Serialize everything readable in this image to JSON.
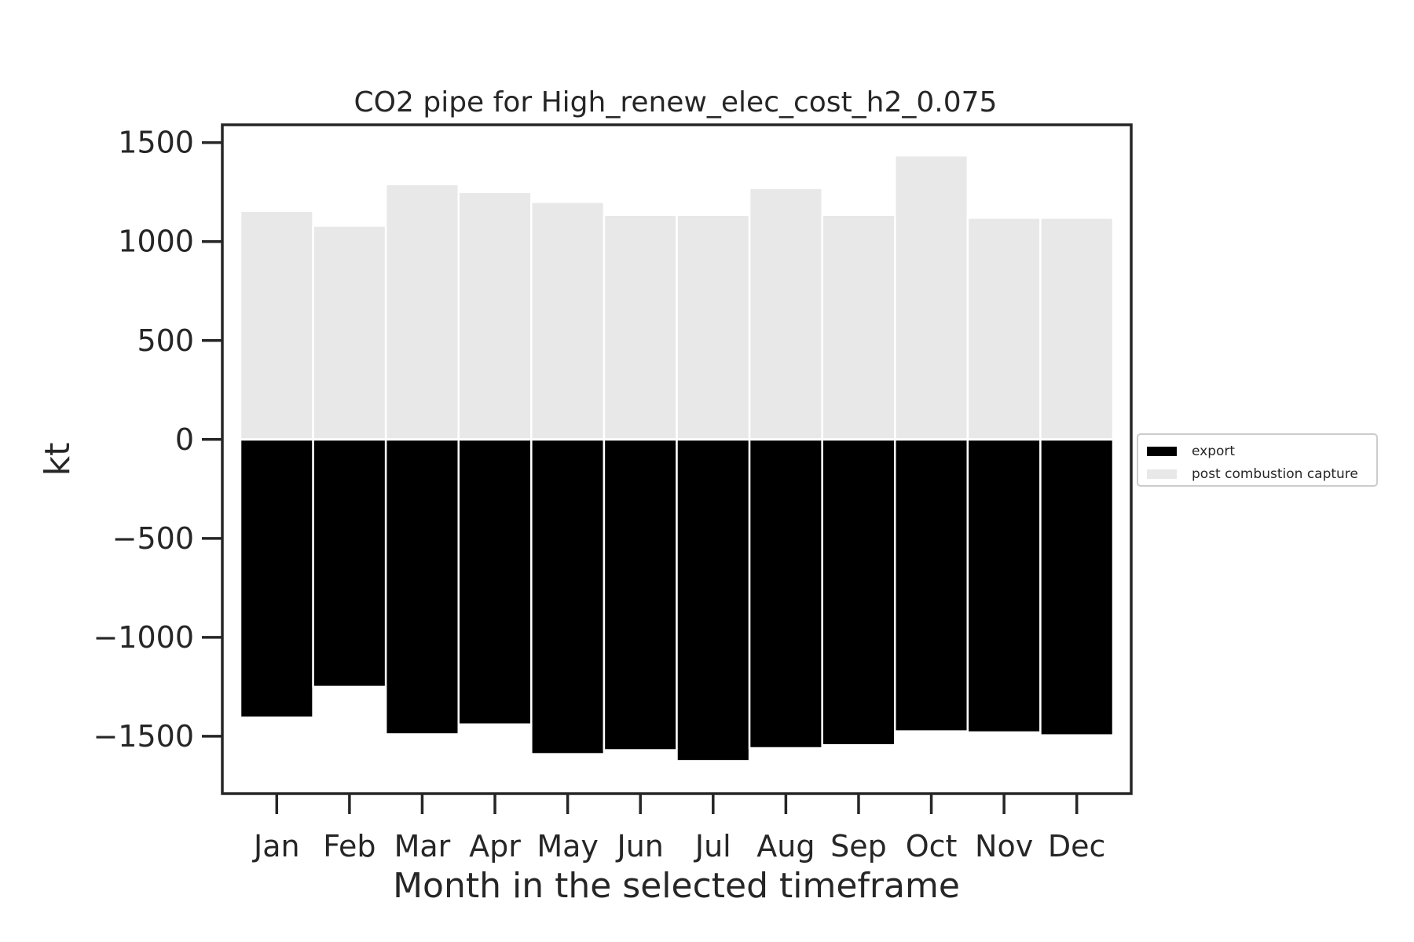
{
  "chart_data": {
    "type": "bar",
    "stacked": true,
    "title": "CO2 pipe for High_renew_elec_cost_h2_0.075",
    "xlabel": "Month in the selected timeframe",
    "ylabel": "kt",
    "categories": [
      "Jan",
      "Feb",
      "Mar",
      "Apr",
      "May",
      "Jun",
      "Jul",
      "Aug",
      "Sep",
      "Oct",
      "Nov",
      "Dec"
    ],
    "series": [
      {
        "name": "export",
        "color": "#000000",
        "values": [
          -1405,
          -1250,
          -1490,
          -1440,
          -1590,
          -1570,
          -1625,
          -1560,
          -1545,
          -1475,
          -1480,
          -1495
        ]
      },
      {
        "name": "post combustion capture",
        "color": "#e8e8e8",
        "values": [
          1155,
          1080,
          1290,
          1250,
          1200,
          1135,
          1135,
          1270,
          1135,
          1435,
          1120,
          1120
        ]
      }
    ],
    "ylim": [
      -1790,
      1590
    ],
    "yticks": [
      -1500,
      -1000,
      -500,
      0,
      500,
      1000,
      1500
    ],
    "ytick_labels": [
      "−1500",
      "−1000",
      "−500",
      "0",
      "500",
      "1000",
      "1500"
    ],
    "legend_position": "center-right outside",
    "grid": false
  }
}
